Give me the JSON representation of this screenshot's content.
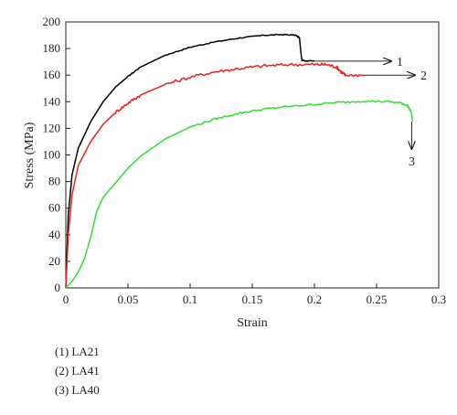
{
  "chart_data": {
    "type": "line",
    "title": "",
    "xlabel": "Strain",
    "ylabel": "Stress (MPa)",
    "xlim": [
      0,
      0.3
    ],
    "ylim": [
      0,
      200
    ],
    "x_ticks": [
      0,
      0.05,
      0.1,
      0.15,
      0.2,
      0.25,
      0.3
    ],
    "x_tick_labels": [
      "0",
      "0.05",
      "0.1",
      "0.15",
      "0.2",
      "0.25",
      "0.3"
    ],
    "y_ticks": [
      0,
      20,
      40,
      60,
      80,
      100,
      120,
      140,
      160,
      180,
      200
    ],
    "y_tick_labels": [
      "0",
      "20",
      "40",
      "60",
      "80",
      "100",
      "120",
      "140",
      "160",
      "180",
      "200"
    ],
    "grid": false,
    "series": [
      {
        "label": "1",
        "color": "#000000",
        "points": [
          [
            0,
            0
          ],
          [
            0.002,
            55
          ],
          [
            0.005,
            85
          ],
          [
            0.01,
            105
          ],
          [
            0.02,
            125
          ],
          [
            0.03,
            140
          ],
          [
            0.04,
            151
          ],
          [
            0.05,
            159
          ],
          [
            0.06,
            166
          ],
          [
            0.08,
            175
          ],
          [
            0.1,
            181
          ],
          [
            0.12,
            185
          ],
          [
            0.14,
            188
          ],
          [
            0.16,
            190
          ],
          [
            0.175,
            190.5
          ],
          [
            0.185,
            190
          ],
          [
            0.188,
            188
          ],
          [
            0.189,
            178
          ],
          [
            0.19,
            171
          ],
          [
            0.2,
            170.5
          ]
        ]
      },
      {
        "label": "2",
        "color": "#e8241c",
        "points": [
          [
            0,
            0
          ],
          [
            0.002,
            40
          ],
          [
            0.005,
            70
          ],
          [
            0.01,
            92
          ],
          [
            0.02,
            110
          ],
          [
            0.03,
            123
          ],
          [
            0.04,
            132
          ],
          [
            0.05,
            139
          ],
          [
            0.06,
            145
          ],
          [
            0.08,
            153
          ],
          [
            0.1,
            158.5
          ],
          [
            0.12,
            162.5
          ],
          [
            0.14,
            165
          ],
          [
            0.16,
            167
          ],
          [
            0.18,
            168
          ],
          [
            0.2,
            168
          ],
          [
            0.21,
            168
          ],
          [
            0.218,
            166
          ],
          [
            0.222,
            162
          ],
          [
            0.225,
            160
          ],
          [
            0.24,
            160
          ]
        ]
      },
      {
        "label": "3",
        "color": "#33dd33",
        "points": [
          [
            0,
            0
          ],
          [
            0.005,
            5
          ],
          [
            0.01,
            12
          ],
          [
            0.015,
            22
          ],
          [
            0.02,
            38
          ],
          [
            0.025,
            58
          ],
          [
            0.03,
            68
          ],
          [
            0.04,
            79
          ],
          [
            0.05,
            90
          ],
          [
            0.06,
            99
          ],
          [
            0.08,
            112
          ],
          [
            0.1,
            121
          ],
          [
            0.12,
            127
          ],
          [
            0.14,
            131.5
          ],
          [
            0.16,
            134.5
          ],
          [
            0.18,
            136.5
          ],
          [
            0.2,
            138
          ],
          [
            0.22,
            139.5
          ],
          [
            0.24,
            140.5
          ],
          [
            0.26,
            140
          ],
          [
            0.27,
            139
          ],
          [
            0.275,
            137
          ],
          [
            0.278,
            132
          ],
          [
            0.279,
            125
          ]
        ]
      }
    ],
    "annotations": [
      {
        "text": "1",
        "series": 0
      },
      {
        "text": "2",
        "series": 1
      },
      {
        "text": "3",
        "series": 2
      }
    ],
    "legend": {
      "placement": "below",
      "items": [
        "(1) LA21",
        "(2) LA41",
        "(3) LA40"
      ]
    }
  }
}
